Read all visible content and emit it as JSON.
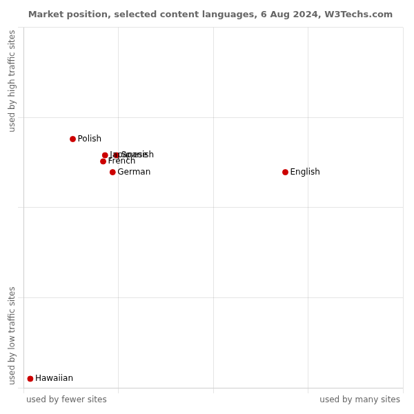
{
  "chart_data": {
    "type": "scatter",
    "title": "Market position, selected content languages, 6 Aug 2024, W3Techs.com",
    "xlabel_left": "used by fewer sites",
    "xlabel_right": "used by many sites",
    "ylabel_top": "used by high traffic sites",
    "ylabel_bottom": "used by low traffic sites",
    "labels": [
      "Polish",
      "Japanese",
      "Spanish",
      "French",
      "German",
      "English",
      "Hawaiian"
    ],
    "x": [
      0.13,
      0.215,
      0.245,
      0.21,
      0.235,
      0.69,
      0.018
    ],
    "y": [
      0.69,
      0.645,
      0.645,
      0.628,
      0.598,
      0.598,
      0.025
    ],
    "color": "#cc0000",
    "xlim": [
      0,
      1
    ],
    "ylim": [
      0,
      1
    ],
    "xticks": [
      0,
      0.25,
      0.5,
      0.75,
      1
    ],
    "yticks": [
      0,
      0.25,
      0.5,
      0.75,
      1
    ],
    "grid": true,
    "tick_labels": false
  }
}
